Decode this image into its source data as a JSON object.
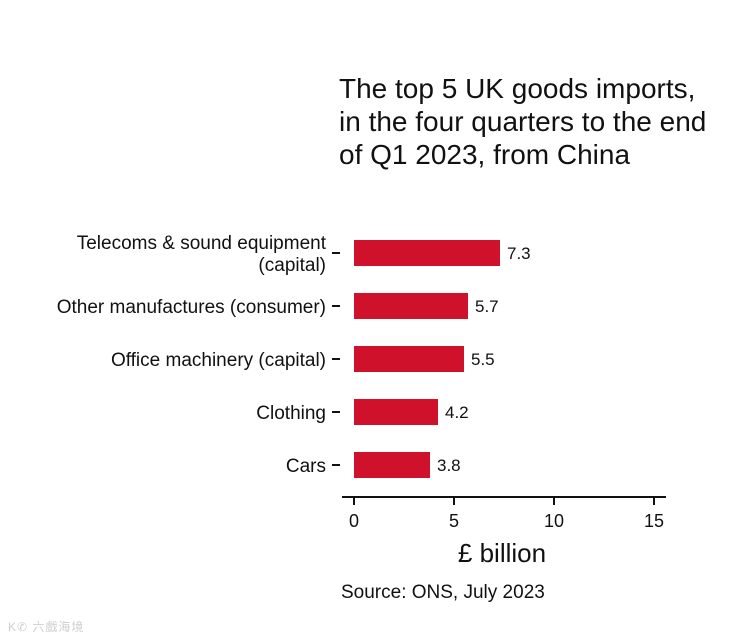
{
  "chart_data": {
    "type": "bar",
    "orientation": "horizontal",
    "title": "The top 5 UK goods imports, in the four quarters to the end of Q1 2023, from China",
    "categories": [
      [
        "Telecoms & sound equipment",
        "(capital)"
      ],
      [
        "Other manufactures (consumer)"
      ],
      [
        "Office machinery (capital)"
      ],
      [
        "Clothing"
      ],
      [
        "Cars"
      ]
    ],
    "values": [
      7.3,
      5.7,
      5.5,
      4.2,
      3.8
    ],
    "value_labels": [
      "7.3",
      "5.7",
      "5.5",
      "4.2",
      "3.8"
    ],
    "xlabel": "£ billion",
    "ylabel": "",
    "xlim": [
      0,
      15
    ],
    "xticks": [
      0,
      5,
      10,
      15
    ],
    "xtick_labels": [
      "0",
      "5",
      "10",
      "15"
    ],
    "bar_color": "#d0112b",
    "grid": false,
    "legend": "none"
  },
  "source": "Source: ONS, July 2023",
  "watermark": "K✆ 六戲海境"
}
